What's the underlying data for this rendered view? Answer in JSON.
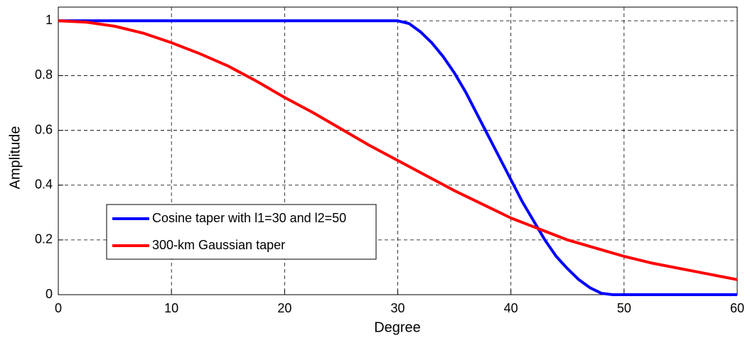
{
  "chart_data": {
    "type": "line",
    "xlabel": "Degree",
    "ylabel": "Amplitude",
    "xlim": [
      0,
      60
    ],
    "ylim": [
      0,
      1.05
    ],
    "xticks": [
      0,
      10,
      20,
      30,
      40,
      50,
      60
    ],
    "yticks": [
      0,
      0.2,
      0.4,
      0.6,
      0.8,
      1
    ],
    "grid": true,
    "legend": "lower left",
    "series": [
      {
        "name": "Cosine taper with l1=30 and l2=50",
        "color": "#0000ff",
        "x": [
          0,
          29,
          30,
          31,
          32,
          33,
          34,
          35,
          36,
          37,
          38,
          39,
          40,
          41,
          42,
          43,
          44,
          45,
          46,
          47,
          48,
          49,
          50,
          60
        ],
        "values": [
          1,
          1,
          1,
          0.99,
          0.96,
          0.92,
          0.87,
          0.81,
          0.74,
          0.66,
          0.58,
          0.5,
          0.42,
          0.34,
          0.27,
          0.2,
          0.14,
          0.095,
          0.055,
          0.025,
          0.005,
          0,
          0,
          0
        ]
      },
      {
        "name": "300-km Gaussian taper",
        "color": "#ff0000",
        "x": [
          0,
          2.5,
          5,
          7.5,
          10,
          12.5,
          15,
          17.5,
          20,
          22.5,
          25,
          27.5,
          30,
          32.5,
          35,
          37.5,
          40,
          42.5,
          45,
          47.5,
          50,
          52.5,
          55,
          57.5,
          60
        ],
        "values": [
          1,
          0.995,
          0.98,
          0.955,
          0.92,
          0.88,
          0.835,
          0.78,
          0.72,
          0.665,
          0.605,
          0.545,
          0.49,
          0.435,
          0.38,
          0.33,
          0.28,
          0.24,
          0.2,
          0.17,
          0.14,
          0.115,
          0.095,
          0.075,
          0.055
        ]
      }
    ]
  }
}
